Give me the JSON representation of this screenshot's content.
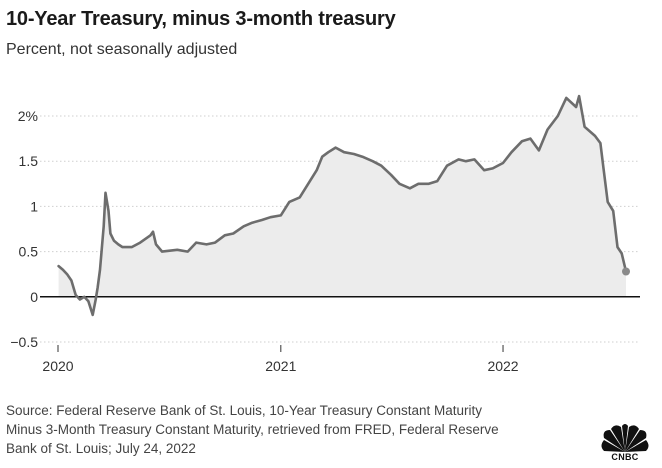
{
  "header": {
    "title": "10-Year Treasury, minus 3-month treasury",
    "subtitle": "Percent, not seasonally adjusted"
  },
  "source_lines": [
    "Source: Federal Reserve Bank of St. Louis, 10-Year Treasury Constant Maturity",
    "Minus 3-Month Treasury Constant Maturity, retrieved from FRED, Federal Reserve",
    "Bank of St. Louis; July 24, 2022"
  ],
  "logo": {
    "text": "CNBC",
    "icon": "peacock-logo-icon"
  },
  "colors": {
    "line": "#6d6d6d",
    "fill": "#ececec",
    "zero_line": "#111111",
    "grid": "#cfcfcf",
    "end_dot": "#8a8a8a"
  },
  "chart_data": {
    "type": "area",
    "title": "10-Year Treasury, minus 3-month treasury",
    "subtitle": "Percent, not seasonally adjusted",
    "xlabel": "",
    "ylabel": "",
    "x_ticks": [
      "2020",
      "2021",
      "2022"
    ],
    "y_ticks": [
      "2%",
      "1.5",
      "1",
      "0.5",
      "0",
      "−0.5"
    ],
    "y_tick_values": [
      2,
      1.5,
      1,
      0.5,
      0,
      -0.5
    ],
    "ylim": [
      -0.5,
      2.2
    ],
    "xlim": [
      "2020-01-01",
      "2022-07-22"
    ],
    "grid": "horizontal",
    "legend": "none",
    "series": [
      {
        "x": [
          "2020-01-02",
          "2020-01-09",
          "2020-01-16",
          "2020-01-23",
          "2020-01-30",
          "2020-02-06",
          "2020-02-13",
          "2020-02-20",
          "2020-02-27",
          "2020-03-03",
          "2020-03-06",
          "2020-03-10",
          "2020-03-16",
          "2020-03-19",
          "2020-03-24",
          "2020-03-27",
          "2020-04-02",
          "2020-04-09",
          "2020-04-16",
          "2020-04-23",
          "2020-05-01",
          "2020-05-15",
          "2020-06-01",
          "2020-06-05",
          "2020-06-10",
          "2020-06-20",
          "2020-07-15",
          "2020-08-01",
          "2020-08-15",
          "2020-09-01",
          "2020-09-15",
          "2020-10-01",
          "2020-10-15",
          "2020-11-01",
          "2020-11-15",
          "2020-12-01",
          "2020-12-15",
          "2021-01-01",
          "2021-01-15",
          "2021-02-01",
          "2021-02-15",
          "2021-03-01",
          "2021-03-10",
          "2021-03-20",
          "2021-04-01",
          "2021-04-15",
          "2021-05-01",
          "2021-05-15",
          "2021-06-01",
          "2021-06-15",
          "2021-07-01",
          "2021-07-15",
          "2021-08-01",
          "2021-08-15",
          "2021-09-01",
          "2021-09-15",
          "2021-10-01",
          "2021-10-20",
          "2021-11-01",
          "2021-11-15",
          "2021-12-01",
          "2021-12-15",
          "2022-01-01",
          "2022-01-15",
          "2022-02-01",
          "2022-02-15",
          "2022-03-01",
          "2022-03-15",
          "2022-04-01",
          "2022-04-15",
          "2022-05-01",
          "2022-05-06",
          "2022-05-15",
          "2022-06-01",
          "2022-06-10",
          "2022-06-15",
          "2022-06-22",
          "2022-07-01",
          "2022-07-08",
          "2022-07-15",
          "2022-07-22"
        ],
        "values": [
          0.34,
          0.3,
          0.25,
          0.18,
          0.02,
          -0.03,
          0.0,
          -0.05,
          -0.2,
          -0.03,
          0.1,
          0.3,
          0.78,
          1.15,
          0.95,
          0.7,
          0.62,
          0.58,
          0.55,
          0.55,
          0.55,
          0.6,
          0.68,
          0.72,
          0.58,
          0.5,
          0.52,
          0.5,
          0.6,
          0.58,
          0.6,
          0.68,
          0.7,
          0.78,
          0.82,
          0.85,
          0.88,
          0.9,
          1.05,
          1.1,
          1.25,
          1.4,
          1.55,
          1.6,
          1.65,
          1.6,
          1.58,
          1.55,
          1.5,
          1.45,
          1.35,
          1.25,
          1.2,
          1.25,
          1.25,
          1.28,
          1.45,
          1.52,
          1.5,
          1.52,
          1.4,
          1.42,
          1.48,
          1.6,
          1.72,
          1.75,
          1.62,
          1.85,
          2.0,
          2.2,
          2.1,
          2.22,
          1.88,
          1.78,
          1.7,
          1.42,
          1.05,
          0.95,
          0.55,
          0.48,
          0.28
        ]
      }
    ]
  }
}
